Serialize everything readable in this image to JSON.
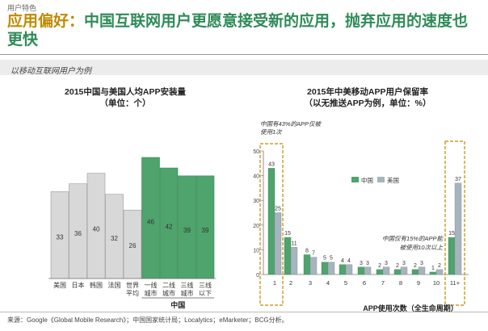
{
  "header": {
    "section_label": "用户特色",
    "headline_accent": "应用偏好：",
    "headline_rest": "中国互联网用户更愿意接受新的应用，抛弃应用的速度也更快",
    "subtitle": "以移动互联网用户为例"
  },
  "footer": {
    "source": "来源：Google《Global Mobile Research》；中国国家统计局；Localytics；eMarketer；BCG分析。"
  },
  "colors": {
    "green": "#4fa36c",
    "gray": "#d8d8d8",
    "gray_blue": "#a7b4bd",
    "brand_green": "#2e8b57",
    "accent": "#c08a00"
  },
  "chart_data": [
    {
      "type": "bar",
      "title": "2015中国与美国人均APP安装量",
      "subtitle": "（单位：个）",
      "categories": [
        "美国",
        "日本",
        "韩国",
        "法国",
        "世界平均",
        "一线城市",
        "二线城市",
        "三线城市",
        "三线以下"
      ],
      "values": [
        33,
        36,
        40,
        32,
        26,
        46,
        42,
        39,
        39
      ],
      "group_label": "中国",
      "grid": false
    },
    {
      "type": "bar",
      "title": "2015年中美移动APP用户保留率",
      "subtitle": "（以无推送APP为例，单位：%）",
      "categories": [
        "1",
        "2",
        "3",
        "4",
        "5",
        "6",
        "7",
        "8",
        "9",
        "10",
        "11+"
      ],
      "series": [
        {
          "name": "中国",
          "values": [
            43,
            15,
            8,
            5,
            4,
            3,
            2,
            2,
            2,
            1,
            15
          ]
        },
        {
          "name": "美国",
          "values": [
            25,
            11,
            7,
            5,
            4,
            3,
            3,
            3,
            3,
            2,
            37
          ]
        }
      ],
      "xlabel": "APP使用次数（全生命周期）",
      "ylim": [
        0,
        50
      ],
      "yticks": [
        0,
        10,
        20,
        30,
        40,
        50
      ],
      "legend": "top-center",
      "annotations": [
        "中国有43%的APP仅被使用1次",
        "中国仅有15%的APP能被使用10次以上"
      ]
    }
  ]
}
